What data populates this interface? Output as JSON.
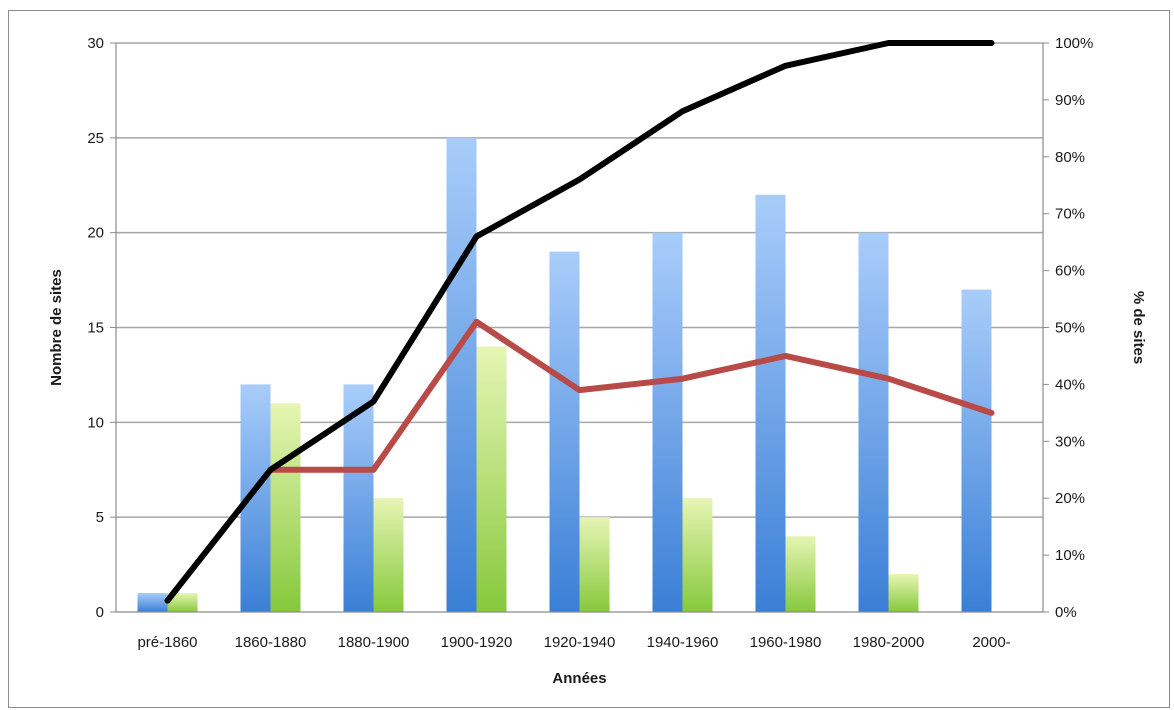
{
  "chart_data": {
    "type": "bar",
    "categories": [
      "pré-1860",
      "1860-1880",
      "1880-1900",
      "1900-1920",
      "1920-1940",
      "1940-1960",
      "1960-1980",
      "1980-2000",
      "2000-"
    ],
    "xlabel": "Années",
    "ylabel": "Nombre de sites",
    "y2label": "% de sites",
    "ylim": [
      0,
      30
    ],
    "y2lim": [
      0,
      100
    ],
    "yticks": [
      "0",
      "5",
      "10",
      "15",
      "20",
      "25",
      "30"
    ],
    "y2ticks": [
      "0%",
      "10%",
      "20%",
      "30%",
      "40%",
      "50%",
      "60%",
      "70%",
      "80%",
      "90%",
      "100%"
    ],
    "grid": true,
    "series": [
      {
        "kind": "bar",
        "axis": "left",
        "values": [
          1,
          12,
          12,
          25,
          19,
          20,
          22,
          20,
          17
        ]
      },
      {
        "kind": "bar",
        "axis": "left",
        "values": [
          1,
          11,
          6,
          14,
          5,
          6,
          4,
          2,
          null
        ]
      },
      {
        "kind": "line",
        "axis": "right",
        "values": [
          null,
          25,
          25,
          51,
          39,
          41,
          45,
          41,
          35
        ]
      },
      {
        "kind": "line",
        "axis": "right",
        "values": [
          2,
          25,
          37,
          66,
          76,
          88,
          96,
          100,
          100
        ]
      }
    ],
    "colors": {
      "bar_blue_top": "#a9cdfa",
      "bar_blue_bottom": "#3a7fd6",
      "bar_green_top": "#e6f5b4",
      "bar_green_bottom": "#86c93c",
      "line_red": "#b84a47",
      "line_black": "#000000",
      "grid": "#a6a6a6"
    }
  }
}
